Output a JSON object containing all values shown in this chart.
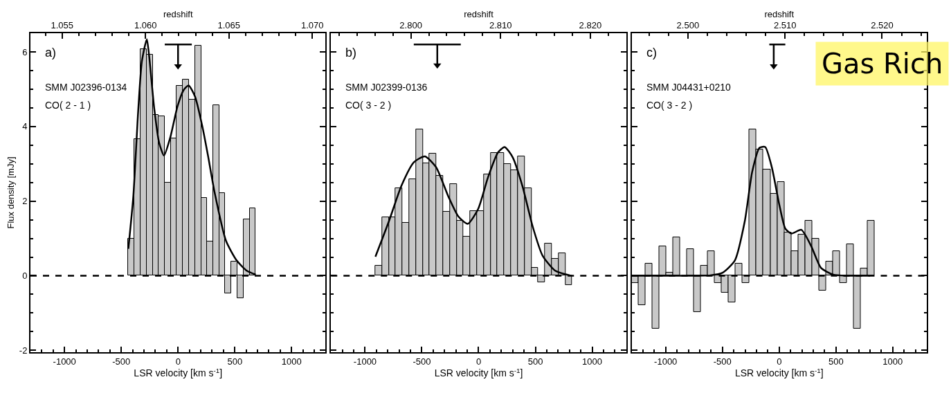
{
  "chart_data": [
    {
      "type": "histogram",
      "color": "#c8c8c8",
      "xlabel": "LSR velocity [km s$^{-1}$]",
      "ylabel": "Flux density [mJy]",
      "x2label": "redshift",
      "bins": [
        -438,
        -385,
        -331,
        -278,
        -224,
        -171,
        -118,
        -64,
        -11,
        43,
        96,
        149,
        203,
        256,
        310,
        363,
        416,
        470,
        523,
        577,
        630,
        683
      ],
      "values": [
        1.0,
        3.66,
        6.07,
        5.93,
        4.32,
        4.27,
        2.49,
        3.68,
        5.09,
        5.26,
        4.72,
        6.16,
        2.09,
        0.91,
        4.57,
        2.22,
        -0.47,
        0.38,
        -0.61,
        1.51,
        1.8
      ],
      "series": [
        {
          "type": "line",
          "color": "#000000",
          "x": [
            -438,
            -394,
            -351,
            -319,
            -275,
            -254,
            -210,
            -167,
            -124,
            -69,
            -4,
            50,
            93,
            150,
            212,
            265,
            321,
            423,
            516,
            602,
            685
          ],
          "values": [
            0.72,
            2.12,
            4.42,
            5.74,
            6.34,
            5.87,
            4.49,
            3.57,
            3.22,
            3.7,
            4.55,
            4.98,
            5.1,
            4.8,
            4.03,
            3.2,
            2.25,
            0.93,
            0.41,
            0.14,
            0.03
          ]
        },
        {
          "type": "line",
          "color": "#000000",
          "x": [
            -117,
            121,
            null,
            0,
            0
          ],
          "values": [
            6.2,
            6.2,
            null,
            6.2,
            5.62
          ]
        },
        {
          "type": "scatter",
          "color": "#000000",
          "marker": "triangle",
          "x": [
            0
          ],
          "values": [
            5.62
          ]
        }
      ],
      "ref_lines": [
        {
          "axis": "y",
          "value": 0,
          "line_style": "dashed"
        }
      ],
      "annotations": [
        "a)",
        "SMM J02396-0134",
        "CO( 2 - 1 )"
      ],
      "xlim": [
        -1300,
        1300
      ],
      "xticks": [
        -1000,
        -500,
        0,
        500,
        1000
      ],
      "ylim": [
        -2.05,
        6.5
      ],
      "yticks": [
        -2,
        0,
        2,
        4,
        6
      ],
      "x2lim": [
        1.0531,
        1.0708
      ],
      "x2ticks": [
        {
          "value": 1.055,
          "label": "1.055"
        },
        {
          "value": 1.06,
          "label": "1.060"
        },
        {
          "value": 1.065,
          "label": "1.065"
        },
        {
          "value": 1.07,
          "label": "1.070"
        }
      ]
    },
    {
      "type": "histogram",
      "color": "#c8c8c8",
      "xlabel": "LSR velocity [km s$^{-1}$]",
      "x2label": "redshift",
      "bins": [
        -910,
        -850,
        -790,
        -731,
        -671,
        -611,
        -551,
        -491,
        -432,
        -372,
        -312,
        -252,
        -192,
        -133,
        -73,
        -13,
        47,
        107,
        166,
        226,
        286,
        346,
        406,
        465,
        525,
        585,
        645,
        704,
        764,
        824
      ],
      "values": [
        0.26,
        1.56,
        1.56,
        2.34,
        1.41,
        2.59,
        3.92,
        3.01,
        3.27,
        2.68,
        1.72,
        2.45,
        1.48,
        1.05,
        1.73,
        1.73,
        2.71,
        3.3,
        3.3,
        2.99,
        2.82,
        3.2,
        2.34,
        0.21,
        -0.18,
        0.87,
        0.45,
        0.6,
        -0.26
      ],
      "series": [
        {
          "type": "line",
          "color": "#000000",
          "x": [
            -909,
            -790,
            -680,
            -571,
            -473,
            -375,
            -266,
            -179,
            -96,
            -4,
            83,
            170,
            229,
            301,
            388,
            475,
            563,
            672,
            803
          ],
          "values": [
            0.51,
            1.46,
            2.41,
            3.04,
            3.2,
            2.91,
            2.12,
            1.59,
            1.39,
            1.79,
            2.64,
            3.3,
            3.45,
            3.17,
            2.38,
            1.33,
            0.54,
            0.14,
            0.01
          ]
        },
        {
          "type": "line",
          "color": "#000000",
          "x": [
            -571,
            -157,
            null,
            -364,
            -364
          ],
          "values": [
            6.2,
            6.2,
            null,
            6.2,
            5.64
          ]
        },
        {
          "type": "scatter",
          "color": "#000000",
          "marker": "triangle",
          "x": [
            -364
          ],
          "values": [
            5.64
          ]
        }
      ],
      "ref_lines": [
        {
          "axis": "y",
          "value": 0,
          "line_style": "dashed"
        }
      ],
      "annotations": [
        "b)",
        "SMM J02399-0136",
        "CO( 3 - 2 )"
      ],
      "xlim": [
        -1300,
        1300
      ],
      "xticks": [
        -1000,
        -500,
        0,
        500,
        1000
      ],
      "ylim": [
        -2.05,
        6.5
      ],
      "yticks": [
        -2,
        0,
        2,
        4,
        6
      ],
      "tick_labels": "x",
      "x2lim": [
        2.7911,
        2.824
      ],
      "x2ticks": [
        {
          "value": 2.8,
          "label": "2.800"
        },
        {
          "value": 2.81,
          "label": "2.810"
        },
        {
          "value": 2.82,
          "label": "2.820"
        }
      ]
    },
    {
      "type": "histogram",
      "color": "#c8c8c8",
      "xlabel": "LSR velocity [km s$^{-1}$]",
      "x2label": "redshift",
      "bins": [
        -1303,
        -1242,
        -1180,
        -1119,
        -1058,
        -996,
        -935,
        -874,
        -813,
        -751,
        -690,
        -629,
        -568,
        -506,
        -445,
        -384,
        -323,
        -261,
        -200,
        -139,
        -77,
        -16,
        45,
        106,
        168,
        229,
        290,
        352,
        413,
        474,
        535,
        597,
        658,
        719,
        781,
        842
      ],
      "values": [
        -0.2,
        -0.79,
        0.33,
        -1.42,
        0.78,
        0.08,
        1.03,
        null,
        0.72,
        -0.98,
        0.26,
        0.66,
        -0.2,
        -0.46,
        -0.72,
        0.33,
        -0.2,
        3.93,
        3.38,
        2.84,
        2.2,
        2.52,
        1.15,
        0.66,
        1.1,
        1.47,
        0.99,
        -0.4,
        0.38,
        0.65,
        -0.2,
        0.85,
        -1.42,
        0.2,
        1.48
      ],
      "series": [
        {
          "type": "line",
          "color": "#000000",
          "x": [
            -1300,
            -900,
            -606,
            -498,
            -390,
            -303,
            -238,
            -173,
            -123,
            -65,
            0,
            54,
            108,
            195,
            281,
            368,
            476,
            600,
            801
          ],
          "values": [
            0,
            0,
            0.01,
            0.08,
            0.41,
            1.46,
            2.78,
            3.43,
            3.45,
            2.91,
            1.92,
            1.26,
            1.13,
            1.23,
            0.8,
            0.21,
            0.03,
            0,
            0
          ]
        },
        {
          "type": "line",
          "color": "#000000",
          "x": [
            -87,
            54,
            null,
            -48,
            -48
          ],
          "values": [
            6.2,
            6.2,
            null,
            6.2,
            5.62
          ]
        },
        {
          "type": "scatter",
          "color": "#000000",
          "marker": "triangle",
          "x": [
            -48
          ],
          "values": [
            5.62
          ]
        }
      ],
      "ref_lines": [
        {
          "axis": "y",
          "value": 0,
          "line_style": "dashed"
        }
      ],
      "annotations": [
        "c)",
        "SMM J04431+0210",
        "CO( 3 - 2 )",
        "Gas Rich"
      ],
      "xlim": [
        -1300,
        1300
      ],
      "xticks": [
        -1000,
        -500,
        0,
        500,
        1000
      ],
      "ylim": [
        -2.05,
        6.5
      ],
      "yticks": [
        -2,
        0,
        2,
        4,
        6
      ],
      "tick_labels": "x",
      "x2lim": [
        2.4942,
        2.5246
      ],
      "x2ticks": [
        {
          "value": 2.5,
          "label": "2.500"
        },
        {
          "value": 2.51,
          "label": "2.510"
        },
        {
          "value": 2.52,
          "label": "2.520"
        }
      ]
    }
  ]
}
